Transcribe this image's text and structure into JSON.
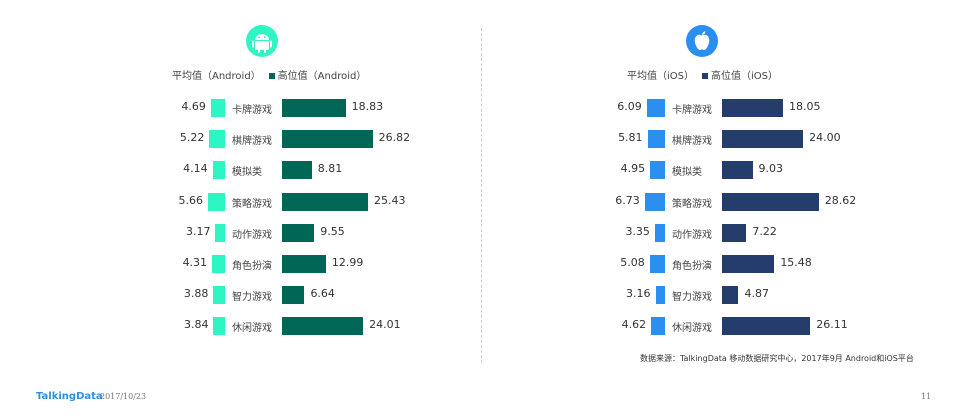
{
  "android": {
    "legend_avg": "平均值（Android）",
    "legend_high": "高位值（Android）",
    "color_avg": "#2ef5c4",
    "color_high": "#006655",
    "logo_icon": "android-icon"
  },
  "ios": {
    "legend_avg": "平均值（iOS）",
    "legend_high": "高位值（iOS）",
    "color_avg": "#2b8ff0",
    "color_high": "#253d6c",
    "logo_icon": "apple-icon"
  },
  "chart_data": [
    {
      "type": "bar",
      "panel": "android",
      "categories": [
        "卡牌游戏",
        "棋牌游戏",
        "模拟类",
        "策略游戏",
        "动作游戏",
        "角色扮演",
        "智力游戏",
        "休闲游戏"
      ],
      "series": [
        {
          "name": "平均值（Android）",
          "values": [
            4.69,
            5.22,
            4.14,
            5.66,
            3.17,
            4.31,
            3.88,
            3.84
          ]
        },
        {
          "name": "高位值（Android）",
          "values": [
            18.83,
            26.82,
            8.81,
            25.43,
            9.55,
            12.99,
            6.64,
            24.01
          ]
        }
      ],
      "value_labels_avg": [
        "4.69",
        "5.22",
        "4.14",
        "5.66",
        "3.17",
        "4.31",
        "3.88",
        "3.84"
      ],
      "value_labels_high": [
        "18.83",
        "26.82",
        "8.81",
        "25.43",
        "9.55",
        "12.99",
        "6.64",
        "24.01"
      ]
    },
    {
      "type": "bar",
      "panel": "ios",
      "categories": [
        "卡牌游戏",
        "棋牌游戏",
        "模拟类",
        "策略游戏",
        "动作游戏",
        "角色扮演",
        "智力游戏",
        "休闲游戏"
      ],
      "series": [
        {
          "name": "平均值（iOS）",
          "values": [
            6.09,
            5.81,
            4.95,
            6.73,
            3.35,
            5.08,
            3.16,
            4.62
          ]
        },
        {
          "name": "高位值（iOS）",
          "values": [
            18.05,
            24.0,
            9.03,
            28.62,
            7.22,
            15.48,
            4.87,
            26.11
          ]
        }
      ],
      "value_labels_avg": [
        "6.09",
        "5.81",
        "4.95",
        "6.73",
        "3.35",
        "5.08",
        "3.16",
        "4.62"
      ],
      "value_labels_high": [
        "18.05",
        "24.00",
        "9.03",
        "28.62",
        "7.22",
        "15.48",
        "4.87",
        "26.11"
      ]
    }
  ],
  "source": "数据来源：TalkingData 移动数据研究中心，2017年9月 Android和iOS平台",
  "footer": {
    "brand": "TalkingData",
    "date": "2017/10/23",
    "page": "11"
  }
}
